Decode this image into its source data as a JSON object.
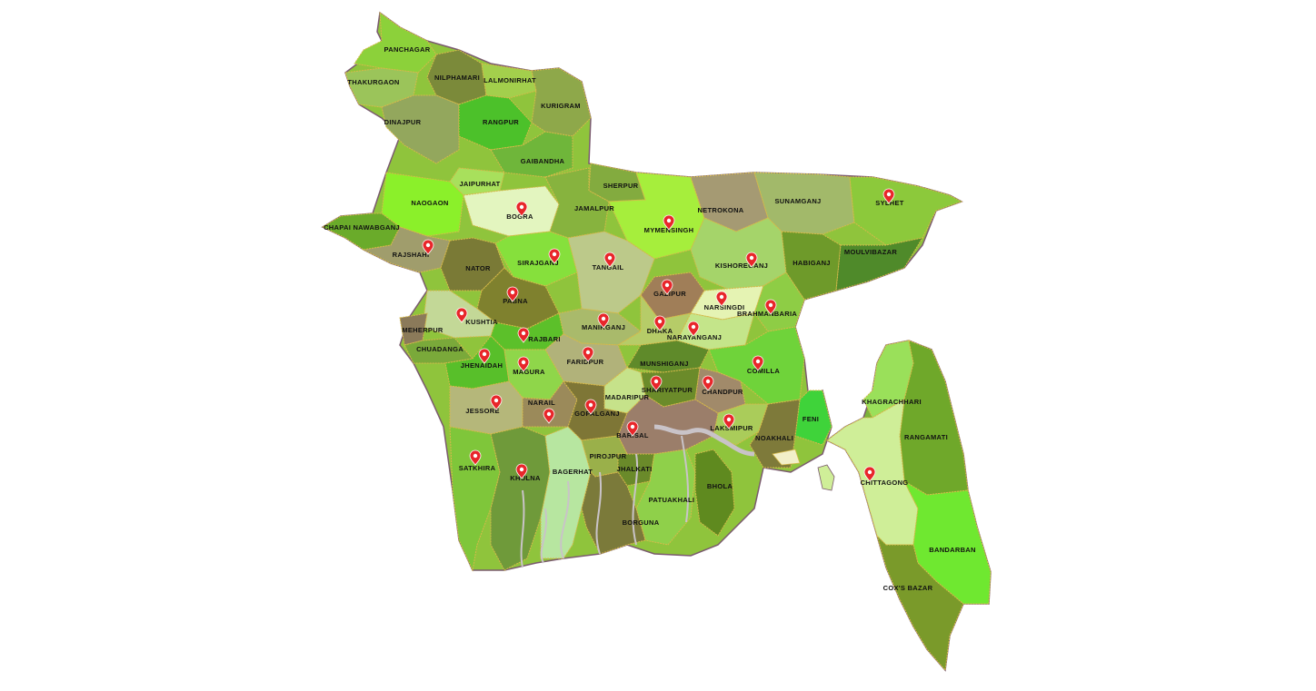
{
  "map": {
    "districts": [
      {
        "name": "PANCHAGAR",
        "pin": false
      },
      {
        "name": "THAKURGAON",
        "pin": false
      },
      {
        "name": "NILPHAMARI",
        "pin": false
      },
      {
        "name": "LALMONIRHAT",
        "pin": false
      },
      {
        "name": "DINAJPUR",
        "pin": false
      },
      {
        "name": "RANGPUR",
        "pin": false
      },
      {
        "name": "KURIGRAM",
        "pin": false
      },
      {
        "name": "GAIBANDHA",
        "pin": false
      },
      {
        "name": "JAIPURHAT",
        "pin": false
      },
      {
        "name": "NAOGAON",
        "pin": false
      },
      {
        "name": "BOGRA",
        "pin": true
      },
      {
        "name": "SHERPUR",
        "pin": false
      },
      {
        "name": "JAMALPUR",
        "pin": false
      },
      {
        "name": "MYMENSINGH",
        "pin": true
      },
      {
        "name": "NETROKONA",
        "pin": false
      },
      {
        "name": "SUNAMGANJ",
        "pin": false
      },
      {
        "name": "SYLHET",
        "pin": true
      },
      {
        "name": "CHAPAI NAWABGANJ",
        "pin": false
      },
      {
        "name": "RAJSHAHI",
        "pin": true
      },
      {
        "name": "NATOR",
        "pin": false
      },
      {
        "name": "SIRAJGANJ",
        "pin": true
      },
      {
        "name": "TANGAIL",
        "pin": true
      },
      {
        "name": "KISHOREGANJ",
        "pin": true
      },
      {
        "name": "HABIGANJ",
        "pin": false
      },
      {
        "name": "MOULVIBAZAR",
        "pin": false
      },
      {
        "name": "PABNA",
        "pin": true
      },
      {
        "name": "GAZIPUR",
        "pin": true
      },
      {
        "name": "NARSINGDI",
        "pin": true
      },
      {
        "name": "BRAHMANBARIA",
        "pin": true
      },
      {
        "name": "KUSHTIA",
        "pin": true
      },
      {
        "name": "MEHERPUR",
        "pin": false
      },
      {
        "name": "MANIKGANJ",
        "pin": true
      },
      {
        "name": "DHAKA",
        "pin": true
      },
      {
        "name": "NARAYANGANJ",
        "pin": true
      },
      {
        "name": "RAJBARI",
        "pin": true
      },
      {
        "name": "CHUADANGA",
        "pin": false
      },
      {
        "name": "FARIDPUR",
        "pin": true
      },
      {
        "name": "MUNSHIGANJ",
        "pin": false
      },
      {
        "name": "COMILLA",
        "pin": true
      },
      {
        "name": "JHENAIDAH",
        "pin": true
      },
      {
        "name": "MAGURA",
        "pin": true
      },
      {
        "name": "SHARIYATPUR",
        "pin": true
      },
      {
        "name": "CHANDPUR",
        "pin": true
      },
      {
        "name": "MADARIPUR",
        "pin": false
      },
      {
        "name": "KHAGRACHHARI",
        "pin": false
      },
      {
        "name": "NARAIL",
        "pin": true
      },
      {
        "name": "JESSORE",
        "pin": true
      },
      {
        "name": "GOPALGANJ",
        "pin": true
      },
      {
        "name": "FENI",
        "pin": false
      },
      {
        "name": "LAKSMIPUR",
        "pin": true
      },
      {
        "name": "BARISAL",
        "pin": true
      },
      {
        "name": "NOAKHALI",
        "pin": false
      },
      {
        "name": "RANGAMATI",
        "pin": false
      },
      {
        "name": "PIROJPUR",
        "pin": false
      },
      {
        "name": "SATKHIRA",
        "pin": true
      },
      {
        "name": "JHALKATI",
        "pin": false
      },
      {
        "name": "KHULNA",
        "pin": true
      },
      {
        "name": "BAGERHAT",
        "pin": false
      },
      {
        "name": "CHITTAGONG",
        "pin": true
      },
      {
        "name": "BHOLA",
        "pin": false
      },
      {
        "name": "PATUAKHALI",
        "pin": false
      },
      {
        "name": "BORGUNA",
        "pin": false
      },
      {
        "name": "BANDARBAN",
        "pin": false
      },
      {
        "name": "COX'S BAZAR",
        "pin": false
      }
    ],
    "pin_icon": "map-marker-icon",
    "colors": {
      "background": "#ffffff",
      "border": "#d6b94a",
      "coast": "#7a5a6e",
      "pin": "#e8262a",
      "river": "#c9c3c8"
    }
  }
}
